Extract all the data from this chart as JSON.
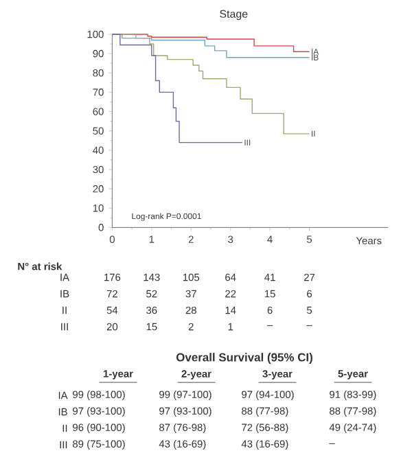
{
  "chart_data": {
    "type": "step",
    "title": "Stage",
    "xlabel": "Years",
    "xlim": [
      0,
      7
    ],
    "xticks": [
      0,
      1,
      2,
      3,
      4,
      5
    ],
    "ylim": [
      0,
      100
    ],
    "yticks": [
      0,
      10,
      20,
      30,
      40,
      50,
      60,
      70,
      80,
      90,
      100
    ],
    "series": [
      {
        "name": "IA",
        "color": "#d9434b",
        "x": [
          0,
          0.9,
          1.0,
          2.4,
          3.6,
          4.6,
          5.0
        ],
        "values": [
          100,
          99,
          98.5,
          97.5,
          94,
          91,
          91
        ]
      },
      {
        "name": "IB",
        "color": "#6f9fd8",
        "x": [
          0,
          0.25,
          1.0,
          2.35,
          2.6,
          2.9,
          5.0
        ],
        "values": [
          100,
          98,
          97,
          94,
          91.5,
          88,
          88
        ]
      },
      {
        "name": "II",
        "color": "#a3a86a",
        "x": [
          0,
          0.6,
          0.95,
          1.05,
          1.4,
          2.05,
          2.2,
          2.3,
          2.9,
          3.25,
          3.55,
          4.35,
          5.0
        ],
        "values": [
          100,
          98,
          95,
          89,
          87,
          84,
          81,
          77,
          72.5,
          66.5,
          59,
          48.5,
          48.5
        ]
      },
      {
        "name": "III",
        "color": "#6a6a9a",
        "x": [
          0,
          0.2,
          1.0,
          1.1,
          1.2,
          1.55,
          1.62,
          1.7,
          3.3
        ],
        "values": [
          100,
          94.5,
          89,
          76,
          70,
          62,
          55,
          44,
          44
        ]
      }
    ],
    "annotations": [
      "Log-rank P=0.0001",
      "N° at risk",
      "IA",
      "176",
      "143",
      "105",
      "64",
      "41",
      "27",
      "IB",
      "72",
      "52",
      "37",
      "22",
      "15",
      "6",
      "II",
      "54",
      "36",
      "28",
      "14",
      "6",
      "5",
      "III",
      "20",
      "15",
      "2",
      "1",
      "–",
      "–",
      "Overall Survival (95% CI)",
      "1-year",
      "2-year",
      "3-year",
      "5-year",
      "IA",
      "99 (98-100)",
      "99 (97-100)",
      "97 (94-100)",
      "91 (83-99)",
      "IB",
      "97 (93-100)",
      "97 (93-100)",
      "88 (77-98)",
      "88 (77-98)",
      "II",
      "96 (90-100)",
      "87 (76-98)",
      "72 (56-88)",
      "49 (24-74)",
      "III",
      "89 (75-100)",
      "43 (16-69)",
      "43 (16-69)",
      "–"
    ]
  }
}
